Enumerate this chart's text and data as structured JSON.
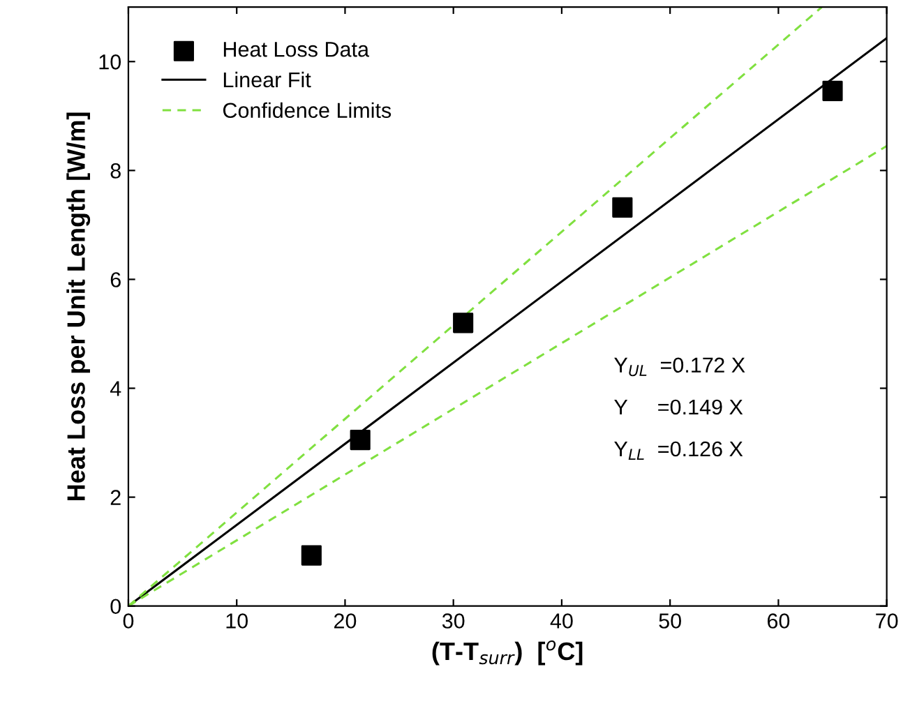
{
  "chart_data": {
    "type": "scatter",
    "xlabel": "(T-T$_{surr}$)  [$^{o}$C]",
    "ylabel": "Heat Loss per Unit Length [W/m]",
    "xlim": [
      0,
      70
    ],
    "ylim": [
      0,
      11
    ],
    "xticks": [
      0,
      10,
      20,
      30,
      40,
      50,
      60,
      70
    ],
    "yticks": [
      0,
      2,
      4,
      6,
      8,
      10
    ],
    "grid": false,
    "legend": "top left",
    "series": [
      {
        "name": "Heat Loss Data",
        "marker": "square",
        "color": "#000000",
        "x": [
          16.9,
          21.4,
          30.9,
          45.6,
          65.0
        ],
        "values": [
          0.93,
          3.05,
          5.2,
          7.32,
          9.46
        ]
      },
      {
        "name": "Linear Fit",
        "type": "line",
        "line_style": "solid",
        "color": "#000000",
        "x": [
          0,
          70
        ],
        "values": [
          0,
          10.43
        ]
      },
      {
        "name": "Confidence Limits",
        "type": "line",
        "line_style": "dashed",
        "color": "#80e040",
        "x": [
          0,
          64
        ],
        "values": [
          0,
          11
        ]
      },
      {
        "type": "line",
        "line_style": "dashed",
        "color": "#80e040",
        "x": [
          0,
          70
        ],
        "values": [
          0,
          8.45
        ]
      }
    ],
    "annotations": [
      "Y$_{UL}$  =0.172 X",
      "Y     =0.149 X",
      "Y$_{LL}$  =0.126 X"
    ]
  }
}
